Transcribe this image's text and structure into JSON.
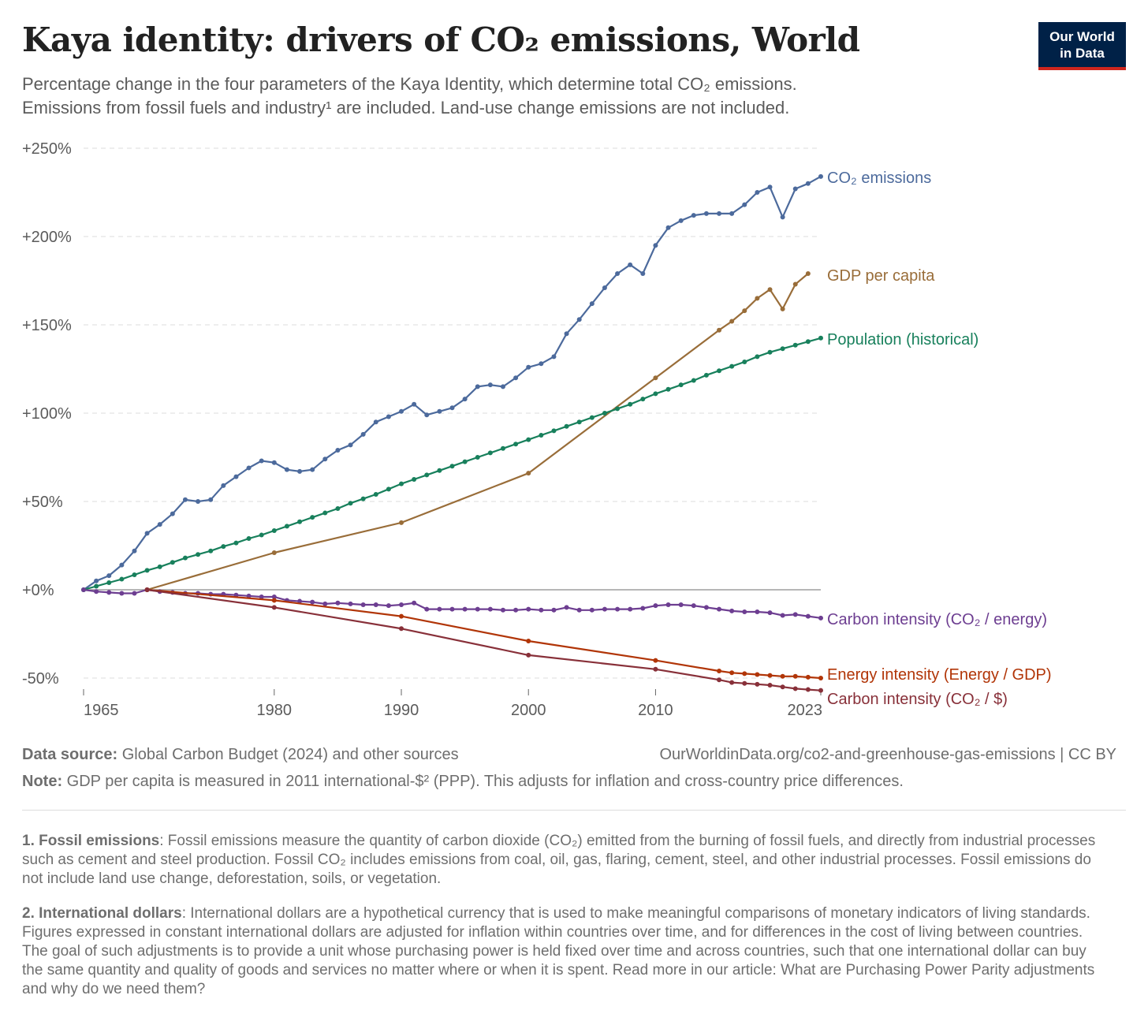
{
  "header": {
    "title": "Kaya identity: drivers of CO₂ emissions, World",
    "subtitle_line1": "Percentage change in the four parameters of the Kaya Identity, which determine total CO₂ emissions.",
    "subtitle_line2": "Emissions from fossil fuels and industry¹ are included. Land-use change emissions are not included.",
    "logo_line1": "Our World",
    "logo_line2": "in Data"
  },
  "colors": {
    "co2": "#4c6a9c",
    "gdp": "#996d39",
    "population": "#18805c",
    "carbon_energy": "#6d3e91",
    "energy_gdp": "#b13507",
    "carbon_gdp": "#883039",
    "grid": "#dddddd",
    "zero_line": "#8a8a8a",
    "axis_text": "#5b5b5b"
  },
  "chart_data": {
    "type": "line",
    "title": "Kaya identity: drivers of CO₂ emissions, World",
    "xlim": [
      1965,
      2023
    ],
    "ylim": [
      -55,
      250
    ],
    "y_ticks": [
      -50,
      0,
      50,
      100,
      150,
      200,
      250
    ],
    "y_tick_labels": [
      "-50%",
      "+0%",
      "+50%",
      "+100%",
      "+150%",
      "+200%",
      "+250%"
    ],
    "x_ticks": [
      1965,
      1980,
      1990,
      2000,
      2010,
      2023
    ],
    "x_tick_labels": [
      "1965",
      "1980",
      "1990",
      "2000",
      "2010",
      "2023"
    ],
    "grid": "horizontal dashed",
    "legend": "line-end labels on the right",
    "series": [
      {
        "name": "CO₂ emissions",
        "color_key": "co2",
        "points": [
          [
            1965,
            0
          ],
          [
            1966,
            5
          ],
          [
            1967,
            8
          ],
          [
            1968,
            14
          ],
          [
            1969,
            22
          ],
          [
            1970,
            32
          ],
          [
            1971,
            37
          ],
          [
            1972,
            43
          ],
          [
            1973,
            51
          ],
          [
            1974,
            50
          ],
          [
            1975,
            51
          ],
          [
            1976,
            59
          ],
          [
            1977,
            64
          ],
          [
            1978,
            69
          ],
          [
            1979,
            73
          ],
          [
            1980,
            72
          ],
          [
            1981,
            68
          ],
          [
            1982,
            67
          ],
          [
            1983,
            68
          ],
          [
            1984,
            74
          ],
          [
            1985,
            79
          ],
          [
            1986,
            82
          ],
          [
            1987,
            88
          ],
          [
            1988,
            95
          ],
          [
            1989,
            98
          ],
          [
            1990,
            101
          ],
          [
            1991,
            105
          ],
          [
            1992,
            99
          ],
          [
            1993,
            101
          ],
          [
            1994,
            103
          ],
          [
            1995,
            108
          ],
          [
            1996,
            115
          ],
          [
            1997,
            116
          ],
          [
            1998,
            115
          ],
          [
            1999,
            120
          ],
          [
            2000,
            126
          ],
          [
            2001,
            128
          ],
          [
            2002,
            132
          ],
          [
            2003,
            145
          ],
          [
            2004,
            153
          ],
          [
            2005,
            162
          ],
          [
            2006,
            171
          ],
          [
            2007,
            179
          ],
          [
            2008,
            184
          ],
          [
            2009,
            179
          ],
          [
            2010,
            195
          ],
          [
            2011,
            205
          ],
          [
            2012,
            209
          ],
          [
            2013,
            212
          ],
          [
            2014,
            213
          ],
          [
            2015,
            213
          ],
          [
            2016,
            213
          ],
          [
            2017,
            218
          ],
          [
            2018,
            225
          ],
          [
            2019,
            228
          ],
          [
            2020,
            211
          ],
          [
            2021,
            227
          ],
          [
            2022,
            230
          ],
          [
            2023,
            234
          ]
        ]
      },
      {
        "name": "GDP per capita",
        "color_key": "gdp",
        "points": [
          [
            1970,
            0
          ],
          [
            1980,
            21
          ],
          [
            1990,
            38
          ],
          [
            2000,
            66
          ],
          [
            2010,
            120
          ],
          [
            2015,
            147
          ],
          [
            2016,
            152
          ],
          [
            2017,
            158
          ],
          [
            2018,
            165
          ],
          [
            2019,
            170
          ],
          [
            2020,
            159
          ],
          [
            2021,
            173
          ],
          [
            2022,
            179
          ]
        ]
      },
      {
        "name": "Population (historical)",
        "color_key": "population",
        "points": [
          [
            1965,
            0
          ],
          [
            1966,
            2
          ],
          [
            1967,
            4
          ],
          [
            1968,
            6
          ],
          [
            1969,
            8.5
          ],
          [
            1970,
            11
          ],
          [
            1971,
            13
          ],
          [
            1972,
            15.5
          ],
          [
            1973,
            18
          ],
          [
            1974,
            20
          ],
          [
            1975,
            22
          ],
          [
            1976,
            24.5
          ],
          [
            1977,
            26.5
          ],
          [
            1978,
            29
          ],
          [
            1979,
            31
          ],
          [
            1980,
            33.5
          ],
          [
            1981,
            36
          ],
          [
            1982,
            38.5
          ],
          [
            1983,
            41
          ],
          [
            1984,
            43.5
          ],
          [
            1985,
            46
          ],
          [
            1986,
            49
          ],
          [
            1987,
            51.5
          ],
          [
            1988,
            54
          ],
          [
            1989,
            57
          ],
          [
            1990,
            60
          ],
          [
            1991,
            62.5
          ],
          [
            1992,
            65
          ],
          [
            1993,
            67.5
          ],
          [
            1994,
            70
          ],
          [
            1995,
            72.5
          ],
          [
            1996,
            75
          ],
          [
            1997,
            77.5
          ],
          [
            1998,
            80
          ],
          [
            1999,
            82.5
          ],
          [
            2000,
            85
          ],
          [
            2001,
            87.5
          ],
          [
            2002,
            90
          ],
          [
            2003,
            92.5
          ],
          [
            2004,
            95
          ],
          [
            2005,
            97.5
          ],
          [
            2006,
            100
          ],
          [
            2007,
            102.5
          ],
          [
            2008,
            105
          ],
          [
            2009,
            108
          ],
          [
            2010,
            111
          ],
          [
            2011,
            113.5
          ],
          [
            2012,
            116
          ],
          [
            2013,
            118.5
          ],
          [
            2014,
            121.5
          ],
          [
            2015,
            124
          ],
          [
            2016,
            126.5
          ],
          [
            2017,
            129
          ],
          [
            2018,
            132
          ],
          [
            2019,
            134.5
          ],
          [
            2020,
            136.5
          ],
          [
            2021,
            138.5
          ],
          [
            2022,
            140.5
          ],
          [
            2023,
            142.5
          ]
        ]
      },
      {
        "name": "Carbon intensity (CO₂ / energy)",
        "color_key": "carbon_energy",
        "points": [
          [
            1965,
            0
          ],
          [
            1966,
            -1
          ],
          [
            1967,
            -1.5
          ],
          [
            1968,
            -2
          ],
          [
            1969,
            -2
          ],
          [
            1970,
            0
          ],
          [
            1971,
            -1
          ],
          [
            1972,
            -1.5
          ],
          [
            1973,
            -2
          ],
          [
            1974,
            -2
          ],
          [
            1975,
            -2.5
          ],
          [
            1976,
            -2.5
          ],
          [
            1977,
            -3
          ],
          [
            1978,
            -3.5
          ],
          [
            1979,
            -4
          ],
          [
            1980,
            -4
          ],
          [
            1981,
            -6
          ],
          [
            1982,
            -6.5
          ],
          [
            1983,
            -7
          ],
          [
            1984,
            -8
          ],
          [
            1985,
            -7.5
          ],
          [
            1986,
            -8
          ],
          [
            1987,
            -8.5
          ],
          [
            1988,
            -8.5
          ],
          [
            1989,
            -9
          ],
          [
            1990,
            -8.5
          ],
          [
            1991,
            -7.5
          ],
          [
            1992,
            -11
          ],
          [
            1993,
            -11
          ],
          [
            1994,
            -11
          ],
          [
            1995,
            -11
          ],
          [
            1996,
            -11
          ],
          [
            1997,
            -11
          ],
          [
            1998,
            -11.5
          ],
          [
            1999,
            -11.5
          ],
          [
            2000,
            -11
          ],
          [
            2001,
            -11.5
          ],
          [
            2002,
            -11.5
          ],
          [
            2003,
            -10
          ],
          [
            2004,
            -11.5
          ],
          [
            2005,
            -11.5
          ],
          [
            2006,
            -11
          ],
          [
            2007,
            -11
          ],
          [
            2008,
            -11
          ],
          [
            2009,
            -10.5
          ],
          [
            2010,
            -9
          ],
          [
            2011,
            -8.5
          ],
          [
            2012,
            -8.5
          ],
          [
            2013,
            -9
          ],
          [
            2014,
            -10
          ],
          [
            2015,
            -11
          ],
          [
            2016,
            -12
          ],
          [
            2017,
            -12.5
          ],
          [
            2018,
            -12.5
          ],
          [
            2019,
            -13
          ],
          [
            2020,
            -14.5
          ],
          [
            2021,
            -14
          ],
          [
            2022,
            -15
          ],
          [
            2023,
            -16
          ]
        ]
      },
      {
        "name": "Energy intensity (Energy / GDP)",
        "color_key": "energy_gdp",
        "points": [
          [
            1970,
            0
          ],
          [
            1980,
            -6
          ],
          [
            1990,
            -15
          ],
          [
            2000,
            -29
          ],
          [
            2010,
            -40
          ],
          [
            2015,
            -46
          ],
          [
            2016,
            -47
          ],
          [
            2017,
            -47.5
          ],
          [
            2018,
            -48
          ],
          [
            2019,
            -48.5
          ],
          [
            2020,
            -49
          ],
          [
            2021,
            -49
          ],
          [
            2022,
            -49.5
          ],
          [
            2023,
            -50
          ]
        ]
      },
      {
        "name": "Carbon intensity (CO₂ / $)",
        "color_key": "carbon_gdp",
        "points": [
          [
            1970,
            0
          ],
          [
            1980,
            -10
          ],
          [
            1990,
            -22
          ],
          [
            2000,
            -37
          ],
          [
            2010,
            -45
          ],
          [
            2015,
            -51
          ],
          [
            2016,
            -52.5
          ],
          [
            2017,
            -53
          ],
          [
            2018,
            -53.5
          ],
          [
            2019,
            -54
          ],
          [
            2020,
            -55
          ],
          [
            2021,
            -56
          ],
          [
            2022,
            -56.5
          ],
          [
            2023,
            -57
          ]
        ]
      }
    ]
  },
  "footer": {
    "data_source_label": "Data source:",
    "data_source_text": " Global Carbon Budget (2024) and other sources",
    "url_text": "OurWorldinData.org/co2-and-greenhouse-gas-emissions | CC BY",
    "note_label": "Note:",
    "note_text": " GDP per capita is measured in 2011 international-$² (PPP). This adjusts for inflation and cross-country price differences.",
    "fn1_label": "1. Fossil emissions",
    "fn1_text": ": Fossil emissions measure the quantity of carbon dioxide (CO₂) emitted from the burning of fossil fuels, and directly from industrial processes such as cement and steel production. Fossil CO₂ includes emissions from coal, oil, gas, flaring, cement, steel, and other industrial processes. Fossil emissions do not include land use change, deforestation, soils, or vegetation.",
    "fn2_label": "2. International dollars",
    "fn2_text": ": International dollars are a hypothetical currency that is used to make meaningful comparisons of monetary indicators of living standards. Figures expressed in constant international dollars are adjusted for inflation within countries over time, and for differences in the cost of living between countries. The goal of such adjustments is to provide a unit whose purchasing power is held fixed over time and across countries, such that one international dollar can buy the same quantity and quality of goods and services no matter where or when it is spent. Read more in our article: What are Purchasing Power Parity adjustments and why do we need them?"
  }
}
